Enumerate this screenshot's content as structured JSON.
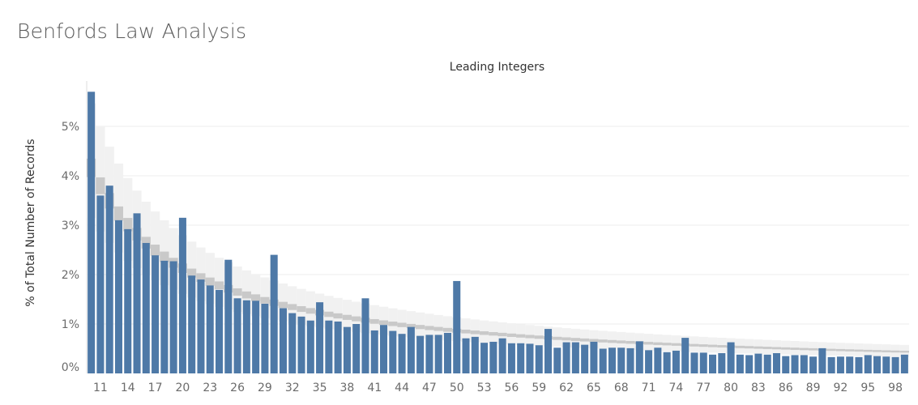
{
  "page": {
    "title": "Benfords Law Analysis"
  },
  "chart_data": {
    "type": "bar",
    "title": "Leading Integers",
    "xlabel": "",
    "ylabel": "% of Total Number of Records",
    "ylim": [
      0,
      6
    ],
    "y_ticks": [
      {
        "value": 0,
        "label": "0%"
      },
      {
        "value": 1,
        "label": "1%"
      },
      {
        "value": 2,
        "label": "2%"
      },
      {
        "value": 3,
        "label": "3%"
      },
      {
        "value": 4,
        "label": "4%"
      },
      {
        "value": 5,
        "label": "5%"
      }
    ],
    "x_tick_labels": [
      "11",
      "14",
      "17",
      "20",
      "23",
      "26",
      "29",
      "32",
      "35",
      "38",
      "41",
      "44",
      "47",
      "50",
      "53",
      "56",
      "59",
      "62",
      "65",
      "68",
      "71",
      "74",
      "77",
      "80",
      "83",
      "86",
      "89",
      "92",
      "95",
      "98"
    ],
    "grid": true,
    "categories": [
      10,
      11,
      12,
      13,
      14,
      15,
      16,
      17,
      18,
      19,
      20,
      21,
      22,
      23,
      24,
      25,
      26,
      27,
      28,
      29,
      30,
      31,
      32,
      33,
      34,
      35,
      36,
      37,
      38,
      39,
      40,
      41,
      42,
      43,
      44,
      45,
      46,
      47,
      48,
      49,
      50,
      51,
      52,
      53,
      54,
      55,
      56,
      57,
      58,
      59,
      60,
      61,
      62,
      63,
      64,
      65,
      66,
      67,
      68,
      69,
      70,
      71,
      72,
      73,
      74,
      75,
      76,
      77,
      78,
      79,
      80,
      81,
      82,
      83,
      84,
      85,
      86,
      87,
      88,
      89,
      90,
      91,
      92,
      93,
      94,
      95,
      96,
      97,
      98,
      99
    ],
    "series": [
      {
        "values": [
          5.7,
          3.6,
          3.8,
          3.1,
          2.92,
          3.24,
          2.64,
          2.39,
          2.28,
          2.27,
          3.15,
          1.98,
          1.9,
          1.78,
          1.69,
          2.3,
          1.52,
          1.48,
          1.47,
          1.41,
          2.4,
          1.32,
          1.22,
          1.15,
          1.07,
          1.44,
          1.07,
          1.05,
          0.94,
          1.0,
          1.52,
          0.87,
          0.98,
          0.86,
          0.8,
          0.94,
          0.76,
          0.78,
          0.78,
          0.82,
          1.87,
          0.71,
          0.74,
          0.62,
          0.64,
          0.71,
          0.61,
          0.61,
          0.6,
          0.57,
          0.9,
          0.52,
          0.63,
          0.63,
          0.58,
          0.64,
          0.5,
          0.52,
          0.52,
          0.51,
          0.65,
          0.47,
          0.52,
          0.43,
          0.46,
          0.72,
          0.42,
          0.42,
          0.38,
          0.41,
          0.63,
          0.38,
          0.37,
          0.4,
          0.38,
          0.41,
          0.35,
          0.37,
          0.37,
          0.34,
          0.51,
          0.33,
          0.34,
          0.34,
          0.33,
          0.37,
          0.35,
          0.34,
          0.33,
          0.38
        ]
      }
    ]
  }
}
